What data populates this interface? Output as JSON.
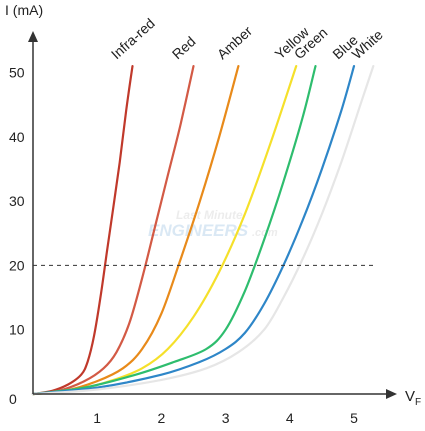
{
  "chart_data": {
    "type": "line",
    "ylabel": "I (mA)",
    "xlabel_main": "V",
    "xlabel_sub": "F",
    "xlim": [
      0,
      6
    ],
    "ylim": [
      0,
      50
    ],
    "xticks": [
      1,
      2,
      3,
      4,
      5
    ],
    "yticks": [
      0,
      10,
      20,
      30,
      40,
      50
    ],
    "reference_line": {
      "y": 20,
      "style": "dashed"
    },
    "watermark": {
      "line1": "Last Minute",
      "line2": "ENGINEERS",
      "line3": ".com"
    },
    "series": [
      {
        "name": "Infra-red",
        "color": "#c0392b",
        "x": [
          0.0,
          0.3,
          0.55,
          0.75,
          0.85,
          0.95,
          1.05,
          1.15,
          1.25,
          1.35,
          1.45,
          1.55
        ],
        "y": [
          0.0,
          0.5,
          1.5,
          3.0,
          5.0,
          9.0,
          15.0,
          22.0,
          29.0,
          36.0,
          44.0,
          51.0
        ]
      },
      {
        "name": "Red",
        "color": "#d35a45",
        "x": [
          0.0,
          0.4,
          0.8,
          1.1,
          1.3,
          1.5,
          1.7,
          1.9,
          2.1,
          2.3,
          2.5
        ],
        "y": [
          0.0,
          0.5,
          2.0,
          4.0,
          6.5,
          11.0,
          18.0,
          26.0,
          34.0,
          42.0,
          51.0
        ]
      },
      {
        "name": "Amber",
        "color": "#e88a1a",
        "x": [
          0.0,
          0.5,
          1.0,
          1.4,
          1.7,
          2.0,
          2.3,
          2.6,
          2.9,
          3.2
        ],
        "y": [
          0.0,
          0.5,
          2.0,
          4.0,
          7.0,
          12.5,
          21.0,
          30.0,
          40.0,
          51.0
        ]
      },
      {
        "name": "Yellow",
        "color": "#f5e02a",
        "x": [
          0.0,
          0.6,
          1.2,
          1.7,
          2.1,
          2.5,
          2.9,
          3.3,
          3.7,
          4.1
        ],
        "y": [
          0.0,
          0.5,
          2.0,
          4.0,
          7.0,
          12.0,
          19.0,
          28.0,
          39.0,
          51.0
        ]
      },
      {
        "name": "Green",
        "color": "#2ebd6e",
        "x": [
          0.0,
          0.8,
          1.6,
          2.2,
          2.7,
          3.0,
          3.3,
          3.6,
          3.9,
          4.2,
          4.4
        ],
        "y": [
          0.0,
          1.0,
          3.0,
          5.0,
          7.0,
          10.0,
          16.0,
          24.0,
          33.0,
          43.0,
          51.0
        ]
      },
      {
        "name": "Blue",
        "color": "#2e86c8",
        "x": [
          0.0,
          1.0,
          2.0,
          2.6,
          3.0,
          3.3,
          3.6,
          3.9,
          4.2,
          4.5,
          4.8,
          5.0
        ],
        "y": [
          0.0,
          1.0,
          3.0,
          5.0,
          7.0,
          9.5,
          14.0,
          20.0,
          27.0,
          35.0,
          44.0,
          51.0
        ]
      },
      {
        "name": "White",
        "color": "#e6e6e6",
        "x": [
          0.0,
          1.0,
          2.0,
          2.7,
          3.2,
          3.6,
          3.9,
          4.2,
          4.5,
          4.8,
          5.1,
          5.3
        ],
        "y": [
          0.0,
          0.7,
          2.2,
          4.0,
          6.5,
          10.0,
          15.0,
          21.0,
          28.0,
          36.0,
          45.0,
          51.0
        ]
      }
    ]
  }
}
